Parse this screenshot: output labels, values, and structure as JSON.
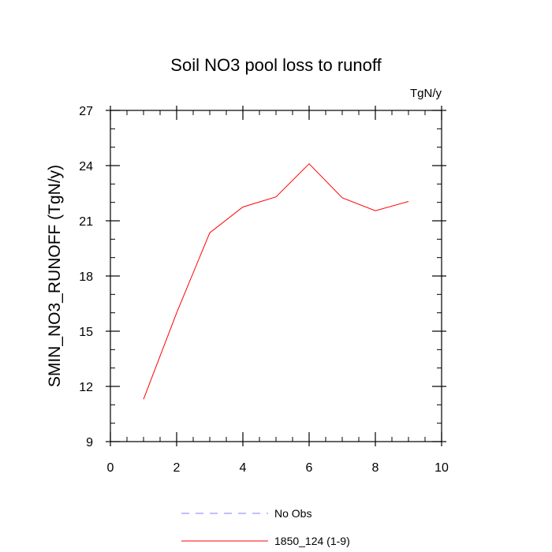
{
  "chart_data": {
    "type": "line",
    "title": "Soil NO3 pool loss to runoff",
    "units_label": "TgN/y",
    "xlabel": "",
    "ylabel": "SMIN_NO3_RUNOFF  (TgN/y)",
    "xlim": [
      0,
      10
    ],
    "ylim": [
      9,
      27
    ],
    "xticks": [
      0,
      2,
      4,
      6,
      8,
      10
    ],
    "xtick_labels": [
      "0",
      "2",
      "4",
      "6",
      "8",
      "10"
    ],
    "yticks": [
      9,
      12,
      15,
      18,
      21,
      24,
      27
    ],
    "ytick_labels": [
      "9",
      "12",
      "15",
      "18",
      "21",
      "24",
      "27"
    ],
    "grid": false,
    "legend_position": "bottom",
    "series": [
      {
        "name": "1850_124 (1-9)",
        "color": "#ff0000",
        "style": "solid",
        "x": [
          1,
          2,
          3,
          4,
          5,
          6,
          7,
          8,
          9
        ],
        "y": [
          11.3,
          16.0,
          20.35,
          21.75,
          22.3,
          24.1,
          22.25,
          21.55,
          22.05
        ]
      }
    ],
    "legend": [
      {
        "label": "No Obs",
        "color": "#8080ff",
        "style": "dashed"
      },
      {
        "label": "1850_124 (1-9)",
        "color": "#ff0000",
        "style": "solid"
      }
    ]
  }
}
